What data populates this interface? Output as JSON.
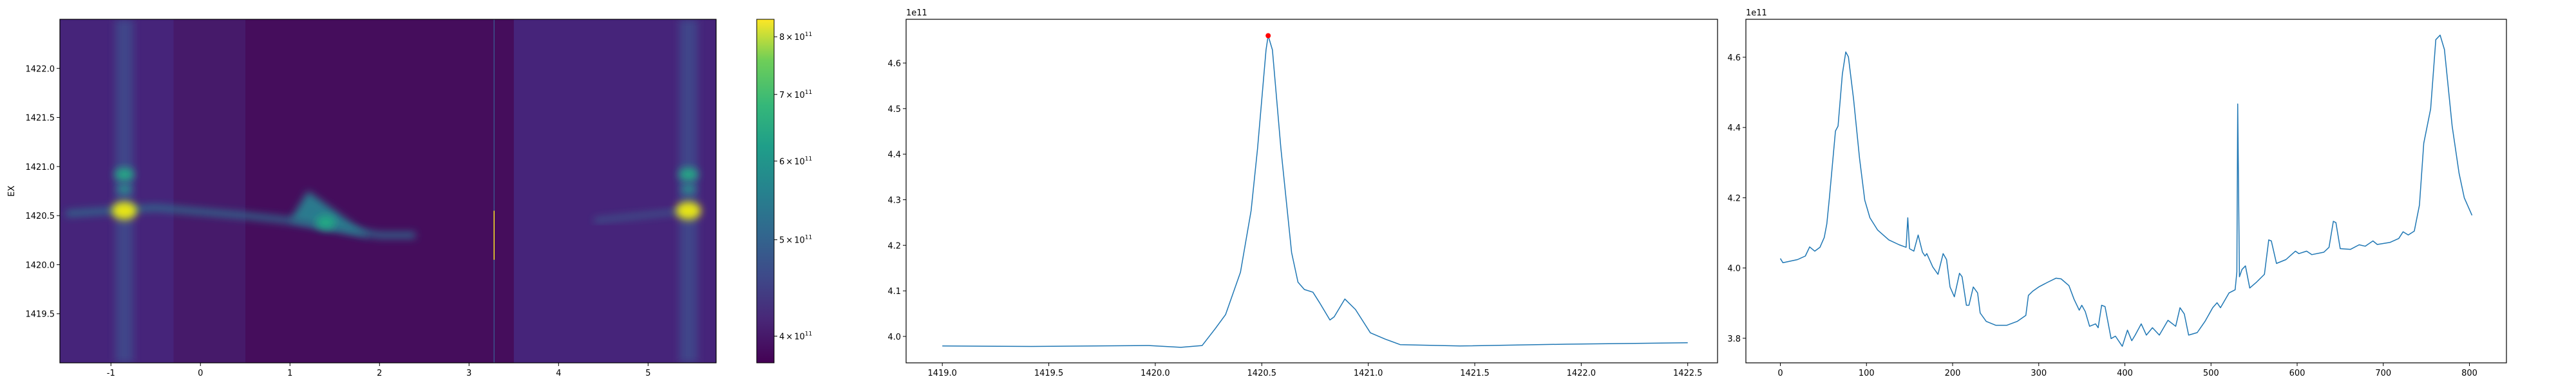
{
  "chart_data": [
    {
      "type": "heatmap",
      "ylabel": "EX",
      "xlabel": "",
      "xlim": [
        -1.57,
        5.76
      ],
      "ylim": [
        1419.0,
        1422.5
      ],
      "xticks": [
        "-1",
        "0",
        "1",
        "2",
        "3",
        "4",
        "5"
      ],
      "yticks": [
        "1419.5",
        "1420.0",
        "1420.5",
        "1421.0",
        "1421.5",
        "1422.0"
      ],
      "colormap": "viridis",
      "colorbar": {
        "scale": "log",
        "range": [
          376000000000.0,
          833000000000.0
        ],
        "ticks": [
          {
            "value": 400000000000.0,
            "mantissa": "4",
            "base": "10",
            "exp": "11"
          },
          {
            "value": 500000000000.0,
            "mantissa": "5",
            "base": "10",
            "exp": "11"
          },
          {
            "value": 600000000000.0,
            "mantissa": "6",
            "base": "10",
            "exp": "11"
          },
          {
            "value": 700000000000.0,
            "mantissa": "7",
            "base": "10",
            "exp": "11"
          },
          {
            "value": 800000000000.0,
            "mantissa": "8",
            "base": "10",
            "exp": "11"
          }
        ],
        "times": "×"
      },
      "features": {
        "vertical_bands_x": [
          -0.85,
          5.45
        ],
        "bright_spots": [
          {
            "x": -0.85,
            "y": 1420.55,
            "level": "max",
            "color": "#e6e419"
          },
          {
            "x": 5.45,
            "y": 1420.55,
            "level": "max",
            "color": "#e6e419"
          },
          {
            "x": -0.85,
            "y": 1420.92,
            "level": "mid",
            "color": "#25a386"
          },
          {
            "x": 5.45,
            "y": 1420.92,
            "level": "mid",
            "color": "#25a386"
          },
          {
            "x": -0.85,
            "y": 1420.77,
            "level": "low",
            "color": "#2a8a8c"
          },
          {
            "x": 5.45,
            "y": 1420.77,
            "level": "low",
            "color": "#2a8a8c"
          },
          {
            "x": 1.4,
            "y": 1420.43,
            "level": "mid",
            "color": "#22a884"
          }
        ],
        "ridge": [
          [
            -1.5,
            1420.52
          ],
          [
            -0.5,
            1420.58
          ],
          [
            0.5,
            1420.5
          ],
          [
            1.0,
            1420.45
          ],
          [
            1.5,
            1420.38
          ],
          [
            2.0,
            1420.3
          ],
          [
            2.4,
            1420.3
          ]
        ],
        "spike_line_x": 3.28
      }
    },
    {
      "type": "line",
      "offset_text": "1e11",
      "xlim": [
        1418.83,
        1422.64
      ],
      "ylim": [
        3.942,
        4.696
      ],
      "xticks": [
        "1419.0",
        "1419.5",
        "1420.0",
        "1420.5",
        "1421.0",
        "1421.5",
        "1422.0",
        "1422.5"
      ],
      "yticks": [
        "4.0",
        "4.1",
        "4.2",
        "4.3",
        "4.4",
        "4.5",
        "4.6"
      ],
      "line_color": "#1f77b4",
      "x": [
        1419.0,
        1419.42,
        1419.97,
        1420.12,
        1420.22,
        1420.28,
        1420.33,
        1420.4,
        1420.45,
        1420.48,
        1420.52,
        1420.53,
        1420.55,
        1420.59,
        1420.64,
        1420.67,
        1420.7,
        1420.74,
        1420.77,
        1420.82,
        1420.84,
        1420.89,
        1420.94,
        1421.01,
        1421.08,
        1421.15,
        1421.43,
        1421.93,
        1422.5
      ],
      "y": [
        3.979,
        3.978,
        3.98,
        3.976,
        3.98,
        4.016,
        4.048,
        4.141,
        4.276,
        4.412,
        4.629,
        4.66,
        4.629,
        4.412,
        4.184,
        4.119,
        4.103,
        4.097,
        4.075,
        4.036,
        4.043,
        4.082,
        4.059,
        4.008,
        3.994,
        3.982,
        3.979,
        3.983,
        3.986
      ],
      "marker": {
        "x": 1420.53,
        "y": 4.66,
        "color": "#ff0000"
      }
    },
    {
      "type": "line",
      "offset_text": "1e11",
      "xlim": [
        -40,
        843
      ],
      "ylim": [
        3.73,
        4.708
      ],
      "xticks": [
        "0",
        "100",
        "200",
        "300",
        "400",
        "500",
        "600",
        "700",
        "800"
      ],
      "yticks": [
        "3.8",
        "4.0",
        "4.2",
        "4.4",
        "4.6"
      ],
      "line_color": "#1f77b4",
      "x": [
        0,
        3,
        20,
        29,
        34,
        40,
        46,
        51,
        54,
        57,
        64,
        67,
        72,
        76,
        79,
        85,
        92,
        98,
        104,
        113,
        126,
        138,
        146,
        148,
        150,
        155,
        160,
        165,
        168,
        170,
        177,
        183,
        189,
        193,
        197,
        202,
        208,
        211,
        216,
        219,
        224,
        229,
        232,
        239,
        250,
        263,
        275,
        285,
        288,
        293,
        300,
        310,
        320,
        326,
        335,
        341,
        347,
        350,
        354,
        359,
        366,
        369,
        373,
        377,
        384,
        389,
        397,
        403,
        408,
        412,
        419,
        425,
        432,
        440,
        450,
        459,
        464,
        469,
        474,
        484,
        493,
        502,
        507,
        511,
        521,
        528,
        530,
        531,
        533,
        536,
        540,
        545,
        553,
        562,
        567,
        570,
        576,
        587,
        598,
        602,
        611,
        617,
        631,
        637,
        642,
        645,
        650,
        662,
        672,
        679,
        688,
        693,
        708,
        718,
        723,
        729,
        736,
        742,
        747,
        755,
        761,
        766,
        771,
        780,
        788,
        794,
        803
      ],
      "y": [
        4.027,
        4.015,
        4.024,
        4.034,
        4.06,
        4.048,
        4.059,
        4.087,
        4.126,
        4.2,
        4.39,
        4.404,
        4.552,
        4.615,
        4.601,
        4.481,
        4.312,
        4.193,
        4.143,
        4.108,
        4.08,
        4.066,
        4.059,
        4.143,
        4.055,
        4.048,
        4.094,
        4.045,
        4.034,
        4.041,
        4.003,
        3.982,
        4.041,
        4.024,
        3.946,
        3.918,
        3.985,
        3.975,
        3.894,
        3.894,
        3.946,
        3.929,
        3.872,
        3.848,
        3.837,
        3.837,
        3.848,
        3.865,
        3.922,
        3.934,
        3.946,
        3.959,
        3.971,
        3.969,
        3.95,
        3.911,
        3.88,
        3.894,
        3.876,
        3.834,
        3.841,
        3.83,
        3.894,
        3.89,
        3.799,
        3.806,
        3.777,
        3.823,
        3.793,
        3.809,
        3.841,
        3.809,
        3.83,
        3.809,
        3.851,
        3.834,
        3.887,
        3.869,
        3.809,
        3.816,
        3.848,
        3.887,
        3.901,
        3.887,
        3.929,
        3.938,
        3.989,
        4.467,
        3.975,
        3.996,
        4.006,
        3.943,
        3.96,
        3.982,
        4.08,
        4.077,
        4.013,
        4.024,
        4.048,
        4.041,
        4.048,
        4.038,
        4.045,
        4.059,
        4.133,
        4.129,
        4.055,
        4.053,
        4.066,
        4.062,
        4.077,
        4.067,
        4.073,
        4.084,
        4.103,
        4.094,
        4.105,
        4.179,
        4.355,
        4.453,
        4.65,
        4.663,
        4.622,
        4.404,
        4.27,
        4.2,
        4.15
      ]
    }
  ]
}
